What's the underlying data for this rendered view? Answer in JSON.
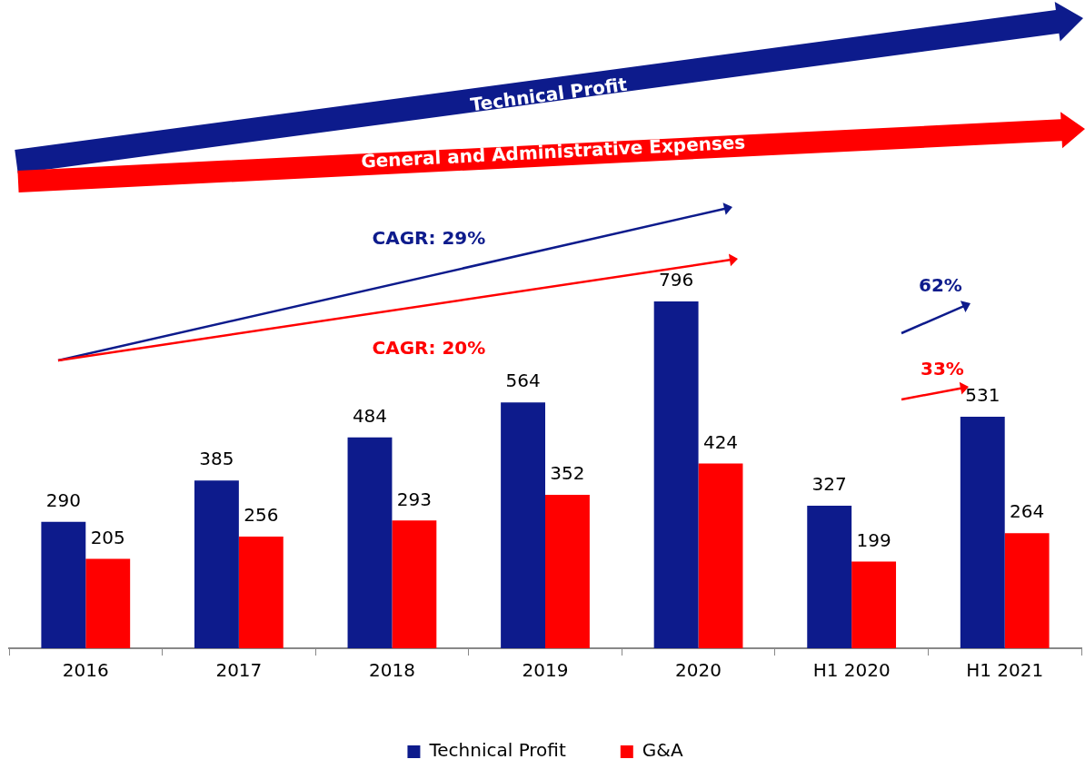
{
  "chart_data": {
    "type": "bar",
    "categories": [
      "2016",
      "2017",
      "2018",
      "2019",
      "2020",
      "H1 2020",
      "H1 2021"
    ],
    "series": [
      {
        "name": "Technical Profit",
        "color": "#0d1b8c",
        "values": [
          290,
          385,
          484,
          564,
          796,
          327,
          531
        ]
      },
      {
        "name": "G&A",
        "color": "#ff0000",
        "values": [
          205,
          256,
          293,
          352,
          424,
          199,
          264
        ]
      }
    ],
    "data_labels": true,
    "legend": "bottom",
    "grid": false,
    "annotations": [
      "Technical Profit",
      "General and Administrative Expenses",
      "CAGR: 29%",
      "CAGR: 20%",
      "62%",
      "33%"
    ]
  }
}
